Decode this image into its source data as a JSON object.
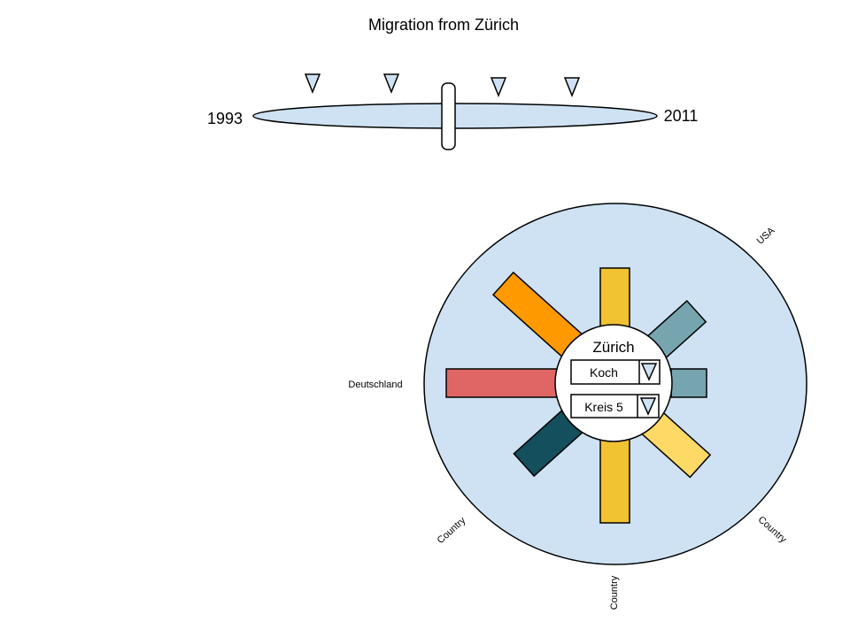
{
  "title": "Migration from Zürich",
  "timeline": {
    "start_year": "1993",
    "end_year": "2011",
    "marker_count": 4
  },
  "radial": {
    "center_label": "Zürich",
    "dropdowns": [
      {
        "value": "Koch"
      },
      {
        "value": "Kreis 5"
      }
    ],
    "country_labels": {
      "top_right": "USA",
      "left": "Deutschland",
      "bottom_left": "Country",
      "bottom": "Country",
      "bottom_right": "Country"
    }
  },
  "colors": {
    "panel_fill": "#cfe2f3",
    "stroke": "#000000",
    "bar_yellow": "#f1c232",
    "bar_orange": "#ff9900",
    "bar_grayblue": "#76a5af",
    "bar_red": "#e06666",
    "bar_darkteal": "#134f5c",
    "bar_lightyellow": "#ffd966"
  }
}
